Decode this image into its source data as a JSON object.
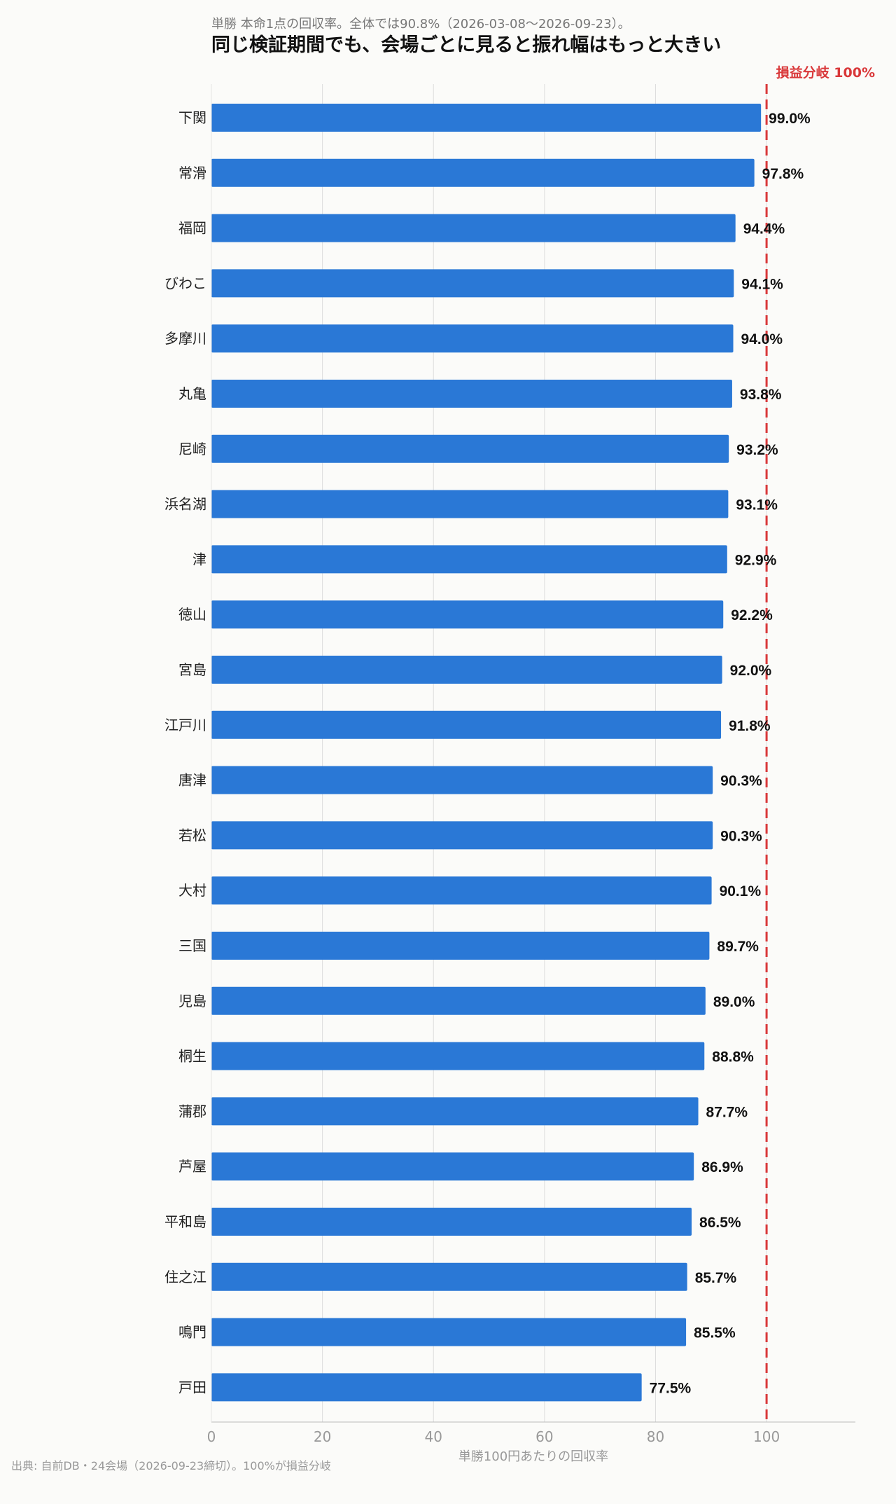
{
  "subtitle": "単勝 本命1点の回収率。全体では90.8%（2026-03-08〜2026-09-23）。",
  "source": "出典: 自前DB・24会場（2026-09-23締切）。100%が損益分岐",
  "chart_data": {
    "type": "bar",
    "orientation": "horizontal",
    "title": "同じ検証期間でも、会場ごとに見ると振れ幅はもっと大きい",
    "xlabel": "単勝100円あたりの回収率",
    "ylabel": "",
    "xlim": [
      0,
      116
    ],
    "xticks": [
      0,
      20,
      40,
      60,
      80,
      100
    ],
    "grid": "vertical",
    "bar_color": "#2a78d6",
    "reference_line": {
      "value": 100,
      "label": "損益分岐 100%",
      "color": "#d9383a",
      "style": "dashed"
    },
    "categories": [
      "下関",
      "常滑",
      "福岡",
      "びわこ",
      "多摩川",
      "丸亀",
      "尼崎",
      "浜名湖",
      "津",
      "徳山",
      "宮島",
      "江戸川",
      "唐津",
      "若松",
      "大村",
      "三国",
      "児島",
      "桐生",
      "蒲郡",
      "芦屋",
      "平和島",
      "住之江",
      "鳴門",
      "戸田"
    ],
    "values": [
      99.0,
      97.8,
      94.4,
      94.1,
      94.0,
      93.8,
      93.2,
      93.1,
      92.9,
      92.2,
      92.0,
      91.8,
      90.3,
      90.3,
      90.1,
      89.7,
      89.0,
      88.8,
      87.7,
      86.9,
      86.5,
      85.7,
      85.5,
      77.5
    ],
    "value_labels": [
      "99.0%",
      "97.8%",
      "94.4%",
      "94.1%",
      "94.0%",
      "93.8%",
      "93.2%",
      "93.1%",
      "92.9%",
      "92.2%",
      "92.0%",
      "91.8%",
      "90.3%",
      "90.3%",
      "90.1%",
      "89.7%",
      "89.0%",
      "88.8%",
      "87.7%",
      "86.9%",
      "86.5%",
      "85.7%",
      "85.5%",
      "77.5%"
    ]
  }
}
